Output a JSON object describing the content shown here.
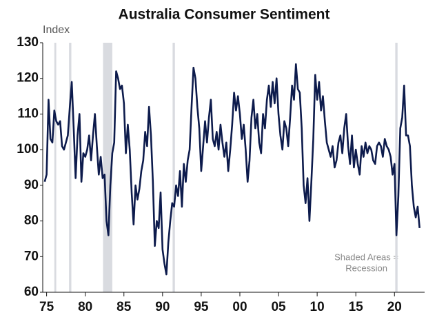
{
  "chart_data": {
    "type": "line",
    "title": "Australia Consumer Sentiment",
    "y_label": "Index",
    "annotation": [
      "Shaded Areas =",
      "Recession"
    ],
    "xlim": [
      1974.5,
      2023.9
    ],
    "ylim": [
      60,
      130
    ],
    "yticks": [
      60,
      70,
      80,
      90,
      100,
      110,
      120,
      130
    ],
    "xticks": [
      {
        "value": 1975,
        "label": "75"
      },
      {
        "value": 1980,
        "label": "80"
      },
      {
        "value": 1985,
        "label": "85"
      },
      {
        "value": 1990,
        "label": "90"
      },
      {
        "value": 1995,
        "label": "95"
      },
      {
        "value": 2000,
        "label": "00"
      },
      {
        "value": 2005,
        "label": "05"
      },
      {
        "value": 2010,
        "label": "10"
      },
      {
        "value": 2015,
        "label": "15"
      },
      {
        "value": 2020,
        "label": "20"
      }
    ],
    "recessions": [
      [
        1976.0,
        1976.25
      ],
      [
        1977.9,
        1978.2
      ],
      [
        1982.3,
        1983.5
      ],
      [
        1991.3,
        1991.6
      ],
      [
        2020.1,
        2020.4
      ]
    ],
    "recession_color": "#d9dbe0",
    "series": [
      {
        "name": "Consumer Sentiment",
        "color": "#0d1b4c",
        "x": [
          1974.75,
          1975,
          1975.25,
          1975.5,
          1975.75,
          1976,
          1976.25,
          1976.5,
          1976.75,
          1977,
          1977.25,
          1977.5,
          1977.75,
          1978,
          1978.25,
          1978.5,
          1978.75,
          1979,
          1979.25,
          1979.5,
          1979.75,
          1980,
          1980.25,
          1980.5,
          1980.75,
          1981,
          1981.25,
          1981.5,
          1981.75,
          1982,
          1982.25,
          1982.5,
          1982.75,
          1983,
          1983.25,
          1983.5,
          1983.75,
          1984,
          1984.25,
          1984.5,
          1984.75,
          1985,
          1985.25,
          1985.5,
          1985.75,
          1986,
          1986.25,
          1986.5,
          1986.75,
          1987,
          1987.25,
          1987.5,
          1987.75,
          1988,
          1988.25,
          1988.5,
          1988.75,
          1989,
          1989.25,
          1989.5,
          1989.75,
          1990,
          1990.25,
          1990.5,
          1990.75,
          1991,
          1991.25,
          1991.5,
          1991.75,
          1992,
          1992.25,
          1992.5,
          1992.75,
          1993,
          1993.25,
          1993.5,
          1993.75,
          1994,
          1994.25,
          1994.5,
          1994.75,
          1995,
          1995.25,
          1995.5,
          1995.75,
          1996,
          1996.25,
          1996.5,
          1996.75,
          1997,
          1997.25,
          1997.5,
          1997.75,
          1998,
          1998.25,
          1998.5,
          1998.75,
          1999,
          1999.25,
          1999.5,
          1999.75,
          2000,
          2000.25,
          2000.5,
          2000.75,
          2001,
          2001.25,
          2001.5,
          2001.75,
          2002,
          2002.25,
          2002.5,
          2002.75,
          2003,
          2003.25,
          2003.5,
          2003.75,
          2004,
          2004.25,
          2004.5,
          2004.75,
          2005,
          2005.25,
          2005.5,
          2005.75,
          2006,
          2006.25,
          2006.5,
          2006.75,
          2007,
          2007.25,
          2007.5,
          2007.75,
          2008,
          2008.25,
          2008.5,
          2008.75,
          2009,
          2009.25,
          2009.5,
          2009.75,
          2010,
          2010.25,
          2010.5,
          2010.75,
          2011,
          2011.25,
          2011.5,
          2011.75,
          2012,
          2012.25,
          2012.5,
          2012.75,
          2013,
          2013.25,
          2013.5,
          2013.75,
          2014,
          2014.25,
          2014.5,
          2014.75,
          2015,
          2015.25,
          2015.5,
          2015.75,
          2016,
          2016.25,
          2016.5,
          2016.75,
          2017,
          2017.25,
          2017.5,
          2017.75,
          2018,
          2018.25,
          2018.5,
          2018.75,
          2019,
          2019.25,
          2019.5,
          2019.75,
          2020,
          2020.25,
          2020.5,
          2020.75,
          2021,
          2021.25,
          2021.5,
          2021.75,
          2022,
          2022.25,
          2022.5,
          2022.75,
          2023,
          2023.25
        ],
        "values": [
          91,
          93,
          114,
          103,
          102,
          111,
          108,
          107,
          108,
          101,
          100,
          102,
          104,
          112,
          119,
          106,
          92,
          104,
          110,
          91,
          99,
          98,
          100,
          104,
          97,
          104,
          110,
          101,
          93,
          98,
          92,
          93,
          80,
          76,
          90,
          99,
          102,
          122,
          120,
          117,
          118,
          113,
          99,
          107,
          100,
          88,
          79,
          90,
          86,
          89,
          94,
          97,
          105,
          101,
          112,
          104,
          91,
          73,
          80,
          78,
          88,
          72,
          68,
          65,
          74,
          80,
          85,
          84,
          90,
          87,
          94,
          84,
          96,
          91,
          97,
          100,
          112,
          123,
          120,
          112,
          106,
          94,
          101,
          108,
          102,
          109,
          114,
          103,
          101,
          105,
          100,
          107,
          102,
          98,
          102,
          94,
          100,
          107,
          116,
          111,
          115,
          110,
          103,
          107,
          100,
          91,
          97,
          109,
          114,
          106,
          110,
          102,
          99,
          110,
          106,
          114,
          118,
          112,
          119,
          113,
          120,
          110,
          104,
          100,
          108,
          106,
          101,
          109,
          118,
          114,
          124,
          117,
          116,
          106,
          90,
          85,
          92,
          80,
          91,
          103,
          121,
          114,
          119,
          111,
          115,
          108,
          102,
          100,
          98,
          101,
          95,
          97,
          102,
          104,
          99,
          106,
          110,
          101,
          96,
          104,
          95,
          100,
          96,
          93,
          101,
          98,
          102,
          99,
          101,
          100,
          97,
          96,
          101,
          102,
          101,
          98,
          103,
          101,
          100,
          98,
          93,
          96,
          76,
          87,
          106,
          109,
          118,
          104,
          104,
          101,
          90,
          84,
          81,
          84,
          78
        ]
      }
    ]
  }
}
